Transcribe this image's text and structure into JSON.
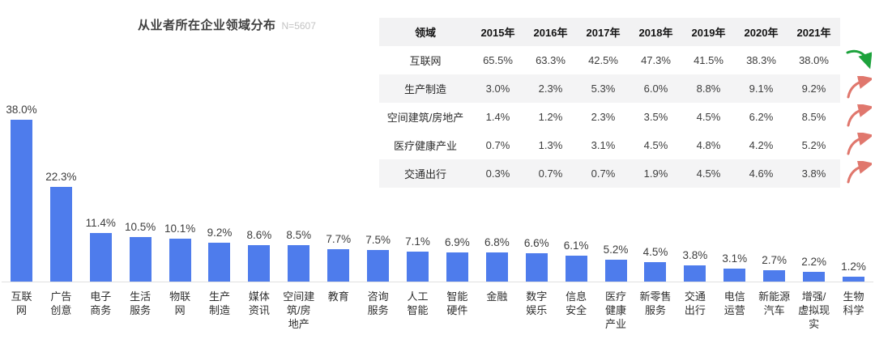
{
  "title": {
    "text": "从业者所在企业领域分布",
    "note": "N=5607"
  },
  "colors": {
    "bar": "#4e7cec",
    "up_arrow": "#e0776d",
    "down_arrow": "#1da23c",
    "stripe": "#f4f4f5",
    "axis_line": "#e0e0e0"
  },
  "chart_data": [
    {
      "type": "bar",
      "title": "从业者所在企业领域分布",
      "note": "N=5607",
      "categories": [
        "互联网",
        "广告创意",
        "电子商务",
        "生活服务",
        "物联网",
        "生产制造",
        "媒体资讯",
        "空间建筑/房地产",
        "教育",
        "咨询服务",
        "人工智能",
        "智能硬件",
        "金融",
        "数字娱乐",
        "信息安全",
        "医疗健康产业",
        "新零售服务",
        "交通出行",
        "电信运营",
        "新能源汽车",
        "增强/虚拟现实",
        "生物科学"
      ],
      "category_labels": [
        "互联\n网",
        "广告\n创意",
        "电子\n商务",
        "生活\n服务",
        "物联\n网",
        "生产\n制造",
        "媒体\n资讯",
        "空间建\n筑/房\n地产",
        "教育",
        "咨询\n服务",
        "人工\n智能",
        "智能\n硬件",
        "金融",
        "数字\n娱乐",
        "信息\n安全",
        "医疗\n健康\n产业",
        "新零售\n服务",
        "交通\n出行",
        "电信\n运营",
        "新能源\n汽车",
        "增强/\n虚拟现\n实",
        "生物\n科学"
      ],
      "values": [
        38.0,
        22.3,
        11.4,
        10.5,
        10.1,
        9.2,
        8.6,
        8.5,
        7.7,
        7.5,
        7.1,
        6.9,
        6.8,
        6.6,
        6.1,
        5.2,
        4.5,
        3.8,
        3.1,
        2.7,
        2.2,
        1.2
      ],
      "value_labels": [
        "38.0%",
        "22.3%",
        "11.4%",
        "10.5%",
        "10.1%",
        "9.2%",
        "8.6%",
        "8.5%",
        "7.7%",
        "7.5%",
        "7.1%",
        "6.9%",
        "6.8%",
        "6.6%",
        "6.1%",
        "5.2%",
        "4.5%",
        "3.8%",
        "3.1%",
        "2.7%",
        "2.2%",
        "1.2%"
      ],
      "xlabel": "",
      "ylabel": "",
      "ylim": [
        0,
        40
      ],
      "grid": false,
      "legend": "none",
      "bar_color": "#4e7cec"
    },
    {
      "type": "table",
      "headers": [
        "领域",
        "2015年",
        "2016年",
        "2017年",
        "2018年",
        "2019年",
        "2020年",
        "2021年"
      ],
      "rows": [
        {
          "label": "互联网",
          "values": [
            "65.5%",
            "63.3%",
            "42.5%",
            "47.3%",
            "41.5%",
            "38.3%",
            "38.0%"
          ],
          "trend": "down",
          "striped": false
        },
        {
          "label": "生产制造",
          "values": [
            "3.0%",
            "2.3%",
            "5.3%",
            "6.0%",
            "8.8%",
            "9.1%",
            "9.2%"
          ],
          "trend": "up",
          "striped": true
        },
        {
          "label": "空间建筑/房地产",
          "values": [
            "1.4%",
            "1.2%",
            "2.3%",
            "3.5%",
            "4.5%",
            "6.2%",
            "8.5%"
          ],
          "trend": "up",
          "striped": false
        },
        {
          "label": "医疗健康产业",
          "values": [
            "0.7%",
            "1.3%",
            "3.1%",
            "4.5%",
            "4.8%",
            "4.2%",
            "5.2%"
          ],
          "trend": "up",
          "striped": false
        },
        {
          "label": "交通出行",
          "values": [
            "0.3%",
            "0.7%",
            "0.7%",
            "1.9%",
            "4.5%",
            "4.6%",
            "3.8%"
          ],
          "trend": "up",
          "striped": true
        }
      ]
    }
  ]
}
